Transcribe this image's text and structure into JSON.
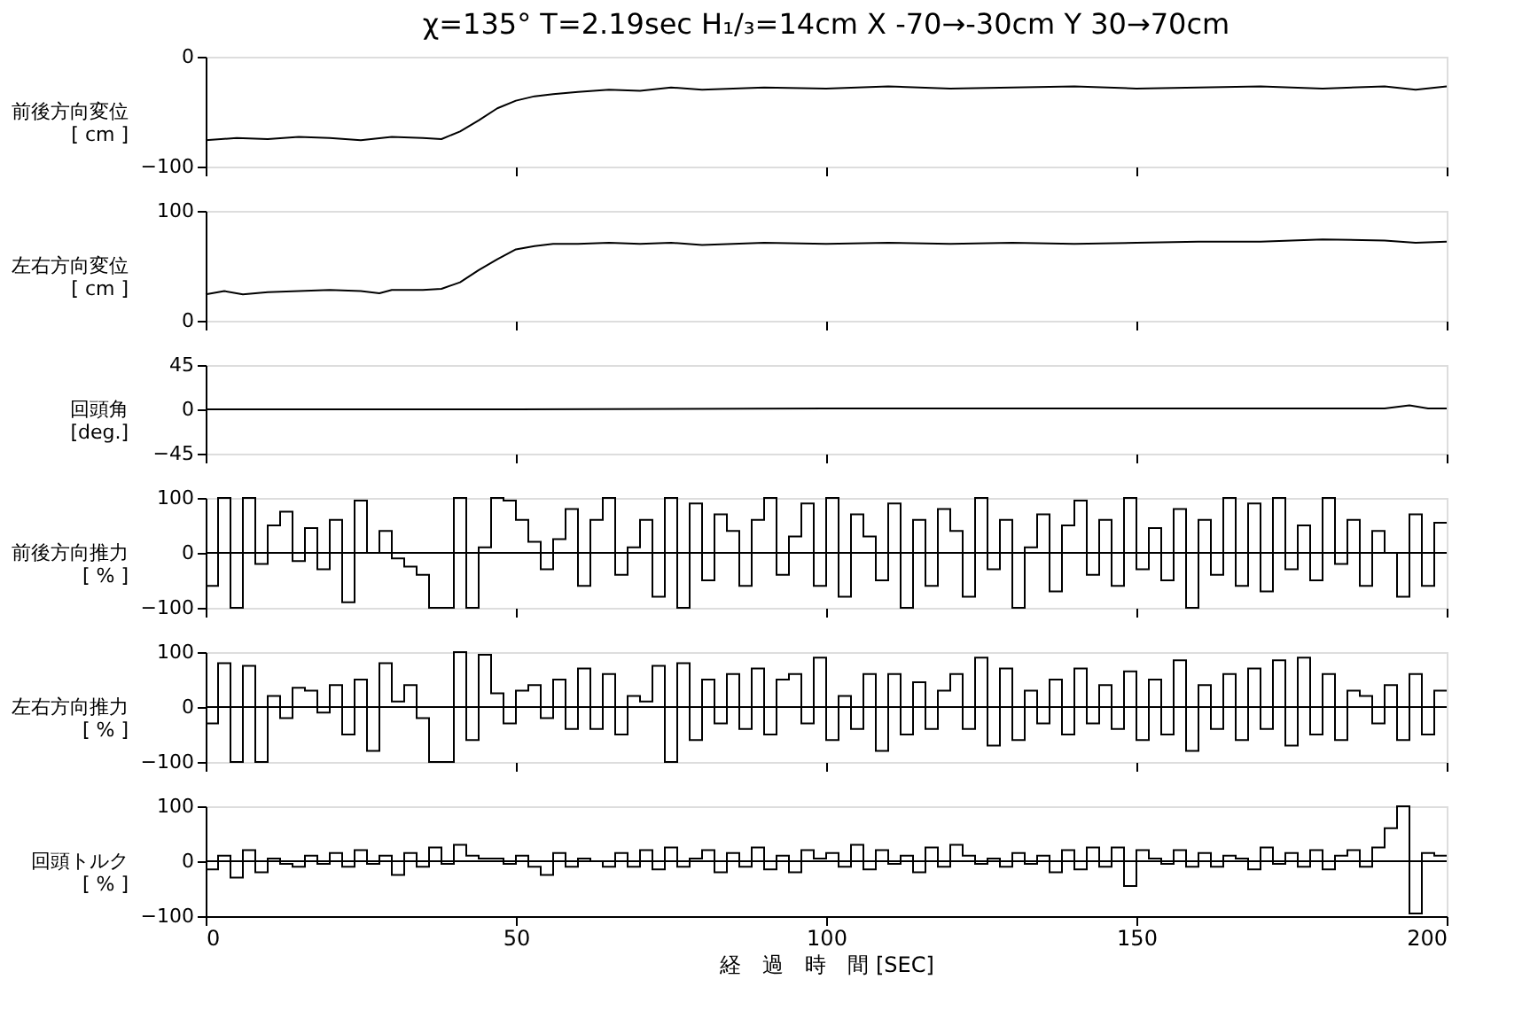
{
  "chart_data": [
    {
      "type": "line",
      "title": "χ=135°  T=2.19sec  H₁/₃=14cm   X -70→-30cm Y 30→70cm",
      "ylabel": "前後方向変位",
      "annotations": [
        "[ cm ]"
      ],
      "tick_labels": "y",
      "xlim": [
        0,
        200
      ],
      "xticks": [
        0,
        50,
        100,
        150,
        200
      ],
      "ylim": [
        -100,
        0
      ],
      "yticks": [
        -100,
        0
      ],
      "x": [
        0,
        5,
        10,
        15,
        20,
        25,
        30,
        35,
        38,
        41,
        44,
        47,
        50,
        53,
        56,
        60,
        65,
        70,
        75,
        80,
        90,
        100,
        110,
        120,
        130,
        140,
        150,
        160,
        170,
        180,
        190,
        195,
        200
      ],
      "series": [
        {
          "color": "#000000",
          "values": [
            -76,
            -74,
            -75,
            -73,
            -74,
            -76,
            -73,
            -74,
            -75,
            -68,
            -58,
            -47,
            -40,
            -36,
            -34,
            -32,
            -30,
            -31,
            -28,
            -30,
            -28,
            -29,
            -27,
            -29,
            -28,
            -27,
            -29,
            -28,
            -27,
            -29,
            -27,
            -30,
            -27
          ]
        }
      ]
    },
    {
      "type": "line",
      "ylabel": "左右方向変位",
      "annotations": [
        "[ cm ]"
      ],
      "tick_labels": "y",
      "xlim": [
        0,
        200
      ],
      "xticks": [
        0,
        50,
        100,
        150,
        200
      ],
      "ylim": [
        0,
        100
      ],
      "yticks": [
        0,
        100
      ],
      "x": [
        0,
        3,
        6,
        10,
        15,
        20,
        25,
        28,
        30,
        35,
        38,
        41,
        44,
        47,
        50,
        53,
        56,
        60,
        65,
        70,
        75,
        80,
        90,
        100,
        110,
        120,
        130,
        140,
        150,
        160,
        170,
        180,
        190,
        195,
        200
      ],
      "series": [
        {
          "color": "#000000",
          "values": [
            24,
            27,
            24,
            26,
            27,
            28,
            27,
            25,
            28,
            28,
            29,
            35,
            46,
            56,
            65,
            68,
            70,
            70,
            71,
            70,
            71,
            69,
            71,
            70,
            71,
            70,
            71,
            70,
            71,
            72,
            72,
            74,
            73,
            71,
            72
          ]
        }
      ]
    },
    {
      "type": "line",
      "ylabel": "回頭角",
      "annotations": [
        "[deg.]"
      ],
      "tick_labels": "y",
      "xlim": [
        0,
        200
      ],
      "xticks": [
        0,
        50,
        100,
        150,
        200
      ],
      "ylim": [
        -45,
        45
      ],
      "yticks": [
        -45,
        0,
        45
      ],
      "x": [
        0,
        50,
        100,
        150,
        190,
        194,
        197,
        200
      ],
      "series": [
        {
          "color": "#000000",
          "values": [
            0,
            0,
            1,
            1,
            1,
            4,
            1,
            1
          ]
        }
      ]
    },
    {
      "type": "step",
      "ylabel": "前後方向推力",
      "annotations": [
        "[ % ]"
      ],
      "tick_labels": "y",
      "x": [
        0,
        2,
        4,
        6,
        8,
        10,
        12,
        14,
        16,
        18,
        20,
        22,
        24,
        26,
        28,
        30,
        32,
        34,
        36,
        38,
        40,
        42,
        44,
        46,
        48,
        50,
        52,
        54,
        56,
        58,
        60,
        62,
        64,
        66,
        68,
        70,
        72,
        74,
        76,
        78,
        80,
        82,
        84,
        86,
        88,
        90,
        92,
        94,
        96,
        98,
        100,
        102,
        104,
        106,
        108,
        110,
        112,
        114,
        116,
        118,
        120,
        122,
        124,
        126,
        128,
        130,
        132,
        134,
        136,
        138,
        140,
        142,
        144,
        146,
        148,
        150,
        152,
        154,
        156,
        158,
        160,
        162,
        164,
        166,
        168,
        170,
        172,
        174,
        176,
        178,
        180,
        182,
        184,
        186,
        188,
        190,
        192,
        194,
        196,
        198,
        200
      ],
      "xlim": [
        0,
        200
      ],
      "xticks": [
        0,
        50,
        100,
        150,
        200
      ],
      "ylim": [
        -100,
        100
      ],
      "yticks": [
        -100,
        0,
        100
      ],
      "ref_lines": [
        {
          "axis": "y",
          "value": 0,
          "color": "#000000"
        }
      ],
      "series": [
        {
          "color": "#000000",
          "values": [
            -60,
            100,
            -100,
            100,
            -20,
            50,
            75,
            -15,
            45,
            -30,
            60,
            -90,
            95,
            0,
            40,
            -10,
            -25,
            -40,
            -100,
            -100,
            100,
            -100,
            10,
            100,
            95,
            60,
            20,
            -30,
            25,
            80,
            -60,
            60,
            100,
            -40,
            10,
            60,
            -80,
            100,
            -100,
            90,
            -50,
            70,
            40,
            -60,
            60,
            100,
            -40,
            30,
            90,
            -60,
            100,
            -80,
            70,
            30,
            -50,
            90,
            -100,
            60,
            -60,
            80,
            40,
            -80,
            100,
            -30,
            60,
            -100,
            10,
            70,
            -70,
            50,
            95,
            -40,
            60,
            -60,
            100,
            -30,
            45,
            -50,
            80,
            -100,
            60,
            -40,
            100,
            -60,
            90,
            -70,
            100,
            -30,
            50,
            -50,
            100,
            -20,
            60,
            -60,
            40,
            0,
            -80,
            70,
            -60,
            55,
            55
          ]
        }
      ]
    },
    {
      "type": "step",
      "ylabel": "左右方向推力",
      "annotations": [
        "[ % ]"
      ],
      "tick_labels": "y",
      "x": [
        0,
        2,
        4,
        6,
        8,
        10,
        12,
        14,
        16,
        18,
        20,
        22,
        24,
        26,
        28,
        30,
        32,
        34,
        36,
        38,
        40,
        42,
        44,
        46,
        48,
        50,
        52,
        54,
        56,
        58,
        60,
        62,
        64,
        66,
        68,
        70,
        72,
        74,
        76,
        78,
        80,
        82,
        84,
        86,
        88,
        90,
        92,
        94,
        96,
        98,
        100,
        102,
        104,
        106,
        108,
        110,
        112,
        114,
        116,
        118,
        120,
        122,
        124,
        126,
        128,
        130,
        132,
        134,
        136,
        138,
        140,
        142,
        144,
        146,
        148,
        150,
        152,
        154,
        156,
        158,
        160,
        162,
        164,
        166,
        168,
        170,
        172,
        174,
        176,
        178,
        180,
        182,
        184,
        186,
        188,
        190,
        192,
        194,
        196,
        198,
        200
      ],
      "xlim": [
        0,
        200
      ],
      "xticks": [
        0,
        50,
        100,
        150,
        200
      ],
      "ylim": [
        -100,
        100
      ],
      "yticks": [
        -100,
        0,
        100
      ],
      "ref_lines": [
        {
          "axis": "y",
          "value": 0,
          "color": "#000000"
        }
      ],
      "series": [
        {
          "color": "#000000",
          "values": [
            -30,
            80,
            -100,
            75,
            -100,
            20,
            -20,
            35,
            30,
            -10,
            40,
            -50,
            50,
            -80,
            80,
            10,
            40,
            -20,
            -100,
            -100,
            100,
            -60,
            95,
            25,
            -30,
            30,
            40,
            -20,
            50,
            -40,
            70,
            -40,
            60,
            -50,
            20,
            10,
            75,
            -100,
            80,
            -60,
            50,
            -30,
            60,
            -40,
            70,
            -50,
            50,
            60,
            -30,
            90,
            -60,
            20,
            -40,
            60,
            -80,
            60,
            -50,
            45,
            -40,
            30,
            60,
            -40,
            90,
            -70,
            70,
            -60,
            30,
            -30,
            50,
            -50,
            70,
            -30,
            40,
            -40,
            65,
            -60,
            50,
            -50,
            85,
            -80,
            40,
            -40,
            60,
            -60,
            70,
            -40,
            85,
            -70,
            90,
            -50,
            60,
            -60,
            30,
            20,
            -30,
            40,
            -60,
            60,
            -50,
            30,
            30
          ]
        }
      ]
    },
    {
      "type": "step",
      "ylabel": "回頭トルク",
      "xlabel": "経　過　時　間",
      "annotations": [
        "[ % ]",
        "[SEC]"
      ],
      "x": [
        0,
        2,
        4,
        6,
        8,
        10,
        12,
        14,
        16,
        18,
        20,
        22,
        24,
        26,
        28,
        30,
        32,
        34,
        36,
        38,
        40,
        42,
        44,
        46,
        48,
        50,
        52,
        54,
        56,
        58,
        60,
        62,
        64,
        66,
        68,
        70,
        72,
        74,
        76,
        78,
        80,
        82,
        84,
        86,
        88,
        90,
        92,
        94,
        96,
        98,
        100,
        102,
        104,
        106,
        108,
        110,
        112,
        114,
        116,
        118,
        120,
        122,
        124,
        126,
        128,
        130,
        132,
        134,
        136,
        138,
        140,
        142,
        144,
        146,
        148,
        150,
        152,
        154,
        156,
        158,
        160,
        162,
        164,
        166,
        168,
        170,
        172,
        174,
        176,
        178,
        180,
        182,
        184,
        186,
        188,
        190,
        192,
        194,
        196,
        198,
        200
      ],
      "xlim": [
        0,
        200
      ],
      "xticks": [
        0,
        50,
        100,
        150,
        200
      ],
      "ylim": [
        -100,
        100
      ],
      "yticks": [
        -100,
        0,
        100
      ],
      "ref_lines": [
        {
          "axis": "y",
          "value": 0,
          "color": "#000000"
        }
      ],
      "series": [
        {
          "color": "#000000",
          "values": [
            -15,
            10,
            -30,
            20,
            -20,
            5,
            -5,
            -10,
            10,
            -5,
            15,
            -10,
            20,
            -5,
            10,
            -25,
            15,
            -10,
            25,
            -5,
            30,
            10,
            5,
            5,
            -5,
            10,
            -10,
            -25,
            15,
            -10,
            5,
            0,
            -10,
            15,
            -10,
            20,
            -15,
            25,
            -10,
            5,
            20,
            -20,
            15,
            -10,
            25,
            -15,
            10,
            -20,
            20,
            5,
            15,
            -10,
            30,
            -15,
            20,
            -5,
            10,
            -20,
            25,
            -10,
            30,
            10,
            -5,
            5,
            -10,
            15,
            -5,
            10,
            -20,
            20,
            -15,
            25,
            -10,
            25,
            -45,
            20,
            5,
            -5,
            20,
            -10,
            15,
            -10,
            10,
            5,
            -15,
            25,
            -5,
            15,
            -10,
            20,
            -15,
            10,
            20,
            -10,
            25,
            60,
            100,
            -95,
            15,
            10,
            10
          ]
        }
      ]
    }
  ]
}
